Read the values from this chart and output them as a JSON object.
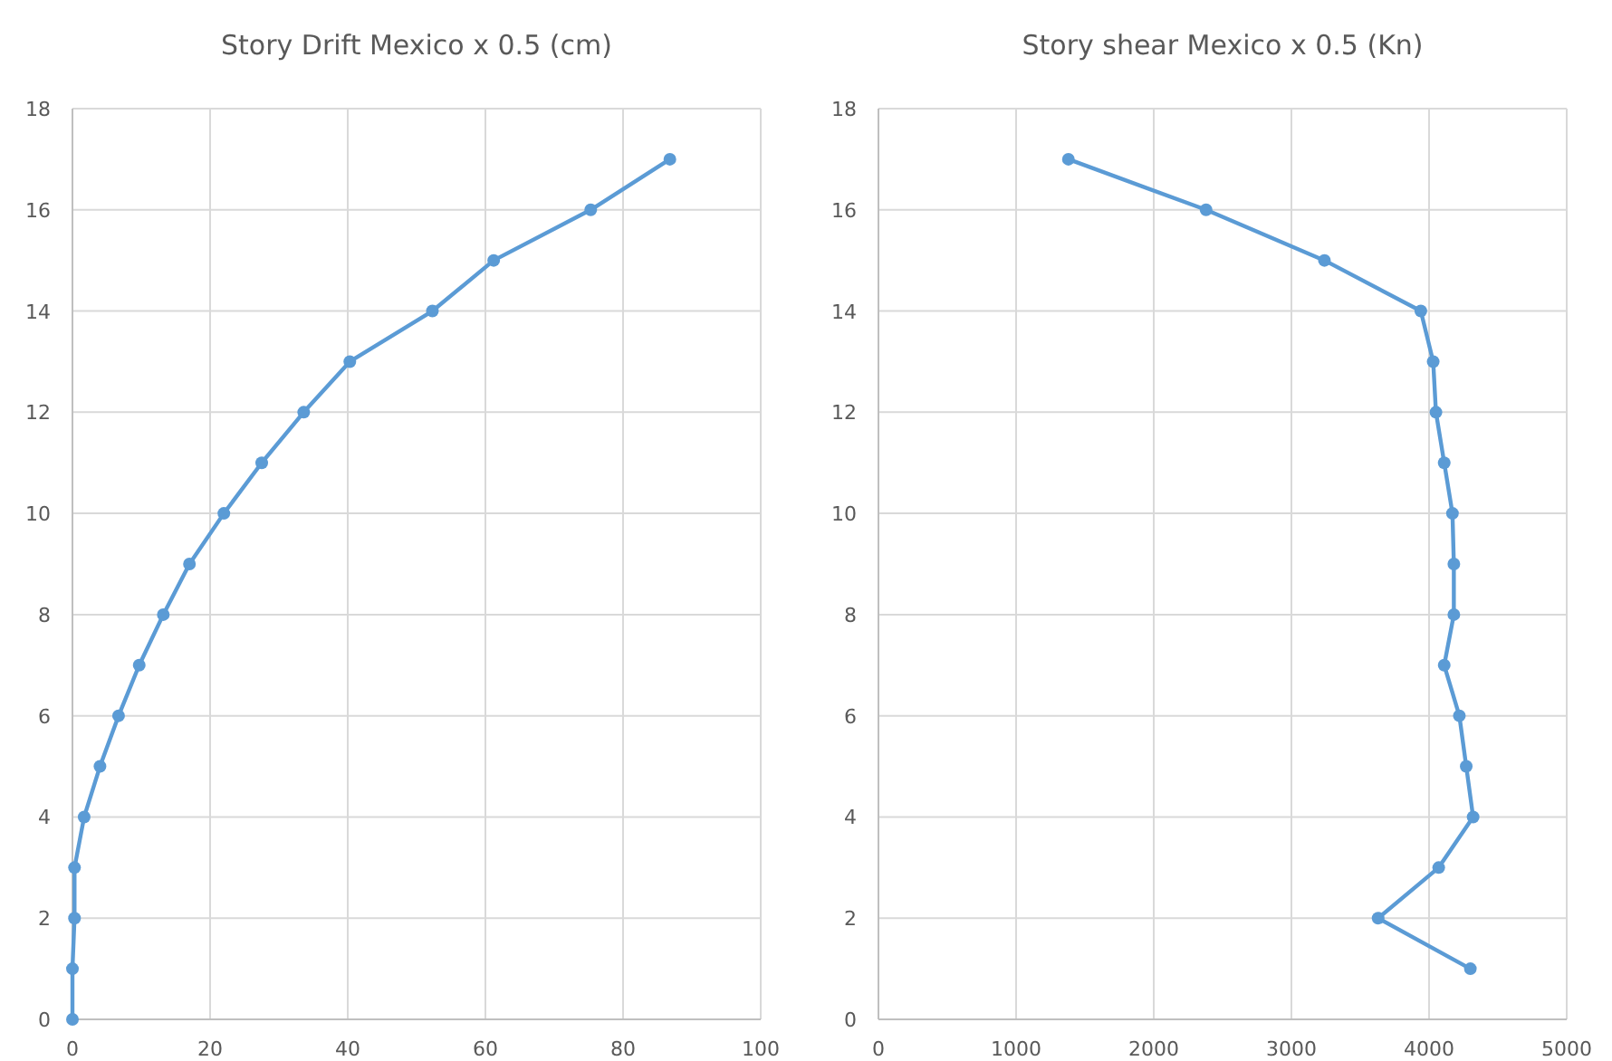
{
  "chart_data": [
    {
      "type": "line",
      "title": "Story Drift Mexico x 0.5 (cm)",
      "xlim": [
        0,
        100
      ],
      "xticks": [
        0,
        20,
        40,
        60,
        80,
        100
      ],
      "ylim": [
        0,
        18
      ],
      "yticks": [
        0,
        2,
        4,
        6,
        8,
        10,
        12,
        14,
        16,
        18
      ],
      "grid": true,
      "marker": "circle",
      "line_style": "solid",
      "series": [
        {
          "color": "#5b9bd5",
          "x": [
            0,
            0,
            0.3,
            0.3,
            1.7,
            4,
            6.7,
            9.7,
            13.2,
            17,
            22,
            27.5,
            33.6,
            40.3,
            52.3,
            61.2,
            75.3,
            86.8
          ],
          "values": [
            0,
            1,
            2,
            3,
            4,
            5,
            6,
            7,
            8,
            9,
            10,
            11,
            12,
            13,
            14,
            15,
            16,
            17
          ]
        }
      ]
    },
    {
      "type": "line",
      "title": "Story shear Mexico x 0.5 (Kn)",
      "xlim": [
        0,
        5000
      ],
      "xticks": [
        0,
        1000,
        2000,
        3000,
        4000,
        5000
      ],
      "ylim": [
        0,
        18
      ],
      "yticks": [
        0,
        2,
        4,
        6,
        8,
        10,
        12,
        14,
        16,
        18
      ],
      "grid": true,
      "marker": "circle",
      "line_style": "solid",
      "series": [
        {
          "color": "#5b9bd5",
          "x": [
            4300,
            3630,
            4070,
            4320,
            4270,
            4220,
            4110,
            4180,
            4180,
            4170,
            4110,
            4050,
            4030,
            3940,
            3240,
            2380,
            1380
          ],
          "values": [
            1,
            2,
            3,
            4,
            5,
            6,
            7,
            8,
            9,
            10,
            11,
            12,
            13,
            14,
            15,
            16,
            17
          ]
        }
      ]
    }
  ]
}
